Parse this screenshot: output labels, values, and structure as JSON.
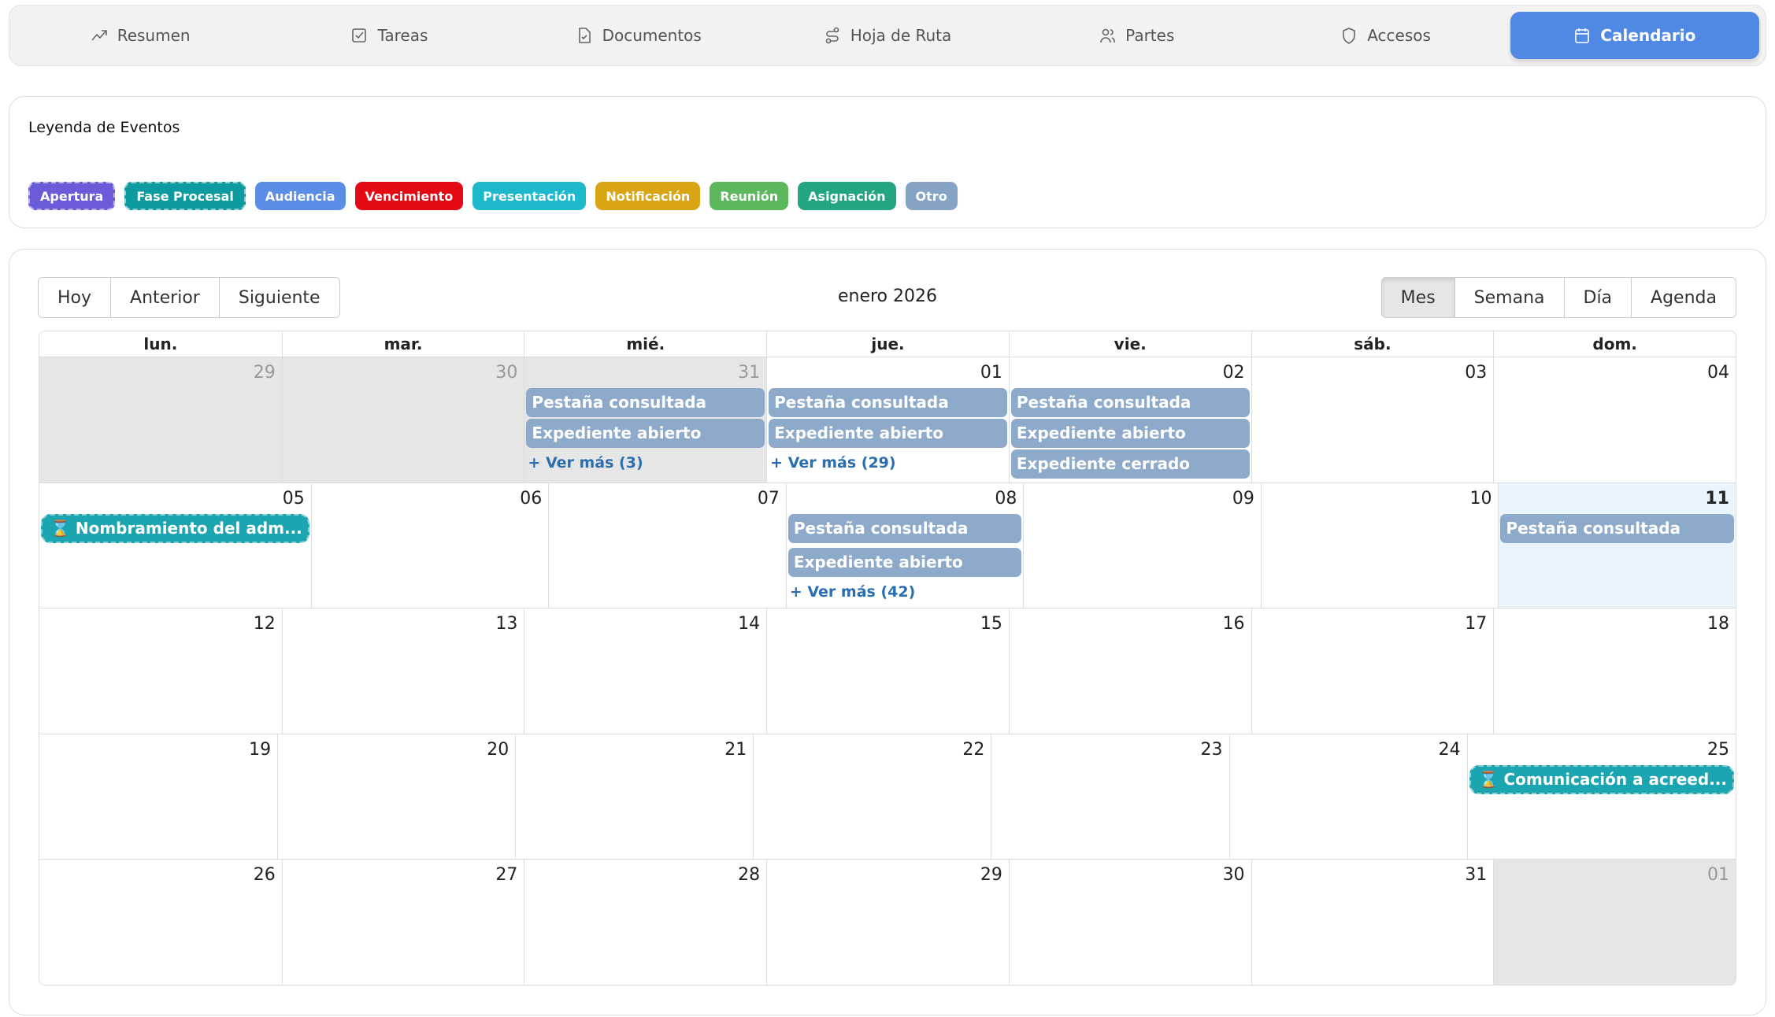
{
  "tabs": [
    {
      "label": "Resumen",
      "icon": "trend-icon"
    },
    {
      "label": "Tareas",
      "icon": "checkbox-icon"
    },
    {
      "label": "Documentos",
      "icon": "document-check-icon"
    },
    {
      "label": "Hoja de Ruta",
      "icon": "route-icon"
    },
    {
      "label": "Partes",
      "icon": "users-icon"
    },
    {
      "label": "Accesos",
      "icon": "shield-icon"
    },
    {
      "label": "Calendario",
      "icon": "calendar-icon",
      "active": true
    }
  ],
  "legend": {
    "title": "Leyenda de Eventos",
    "items": [
      {
        "label": "Apertura",
        "color": "#6a5bd8",
        "dashed": true
      },
      {
        "label": "Fase Procesal",
        "color": "#0e9ba0",
        "dashed": true
      },
      {
        "label": "Audiencia",
        "color": "#5b8de6"
      },
      {
        "label": "Vencimiento",
        "color": "#e50914"
      },
      {
        "label": "Presentación",
        "color": "#1eb8cc"
      },
      {
        "label": "Notificación",
        "color": "#d9a514"
      },
      {
        "label": "Reunión",
        "color": "#5cb85c"
      },
      {
        "label": "Asignación",
        "color": "#22a580"
      },
      {
        "label": "Otro",
        "color": "#85a3c4"
      }
    ]
  },
  "toolbar": {
    "today": "Hoy",
    "prev": "Anterior",
    "next": "Siguiente",
    "month_label": "enero 2026",
    "views": [
      "Mes",
      "Semana",
      "Día",
      "Agenda"
    ],
    "active_view": "Mes"
  },
  "weekdays": [
    "lun.",
    "mar.",
    "mié.",
    "jue.",
    "vie.",
    "sáb.",
    "dom."
  ],
  "weeks": [
    [
      {
        "d": "29",
        "off": true
      },
      {
        "d": "30",
        "off": true
      },
      {
        "d": "31",
        "off": true,
        "events": [
          "Pestaña consultada",
          "Expediente abierto"
        ],
        "more": "+ Ver más (3)"
      },
      {
        "d": "01",
        "events": [
          "Pestaña consultada",
          "Expediente abierto"
        ],
        "more": "+ Ver más (29)"
      },
      {
        "d": "02",
        "events": [
          "Pestaña consultada",
          "Expediente abierto",
          "Expediente cerrado"
        ]
      },
      {
        "d": "03"
      },
      {
        "d": "04"
      }
    ],
    [
      {
        "d": "05",
        "teal": "⌛ Nombramiento del adm..."
      },
      {
        "d": "06"
      },
      {
        "d": "07"
      },
      {
        "d": "08",
        "events": [
          "Pestaña consultada",
          "Expediente abierto"
        ],
        "gap": true,
        "more": "+ Ver más (42)"
      },
      {
        "d": "09"
      },
      {
        "d": "10"
      },
      {
        "d": "11",
        "today": true,
        "events": [
          "Pestaña consultada"
        ]
      }
    ],
    [
      {
        "d": "12"
      },
      {
        "d": "13"
      },
      {
        "d": "14"
      },
      {
        "d": "15"
      },
      {
        "d": "16"
      },
      {
        "d": "17"
      },
      {
        "d": "18"
      }
    ],
    [
      {
        "d": "19"
      },
      {
        "d": "20"
      },
      {
        "d": "21"
      },
      {
        "d": "22"
      },
      {
        "d": "23"
      },
      {
        "d": "24"
      },
      {
        "d": "25",
        "teal": "⌛ Comunicación a acreed..."
      }
    ],
    [
      {
        "d": "26"
      },
      {
        "d": "27"
      },
      {
        "d": "28"
      },
      {
        "d": "29"
      },
      {
        "d": "30"
      },
      {
        "d": "31"
      },
      {
        "d": "01",
        "off": true
      }
    ]
  ]
}
